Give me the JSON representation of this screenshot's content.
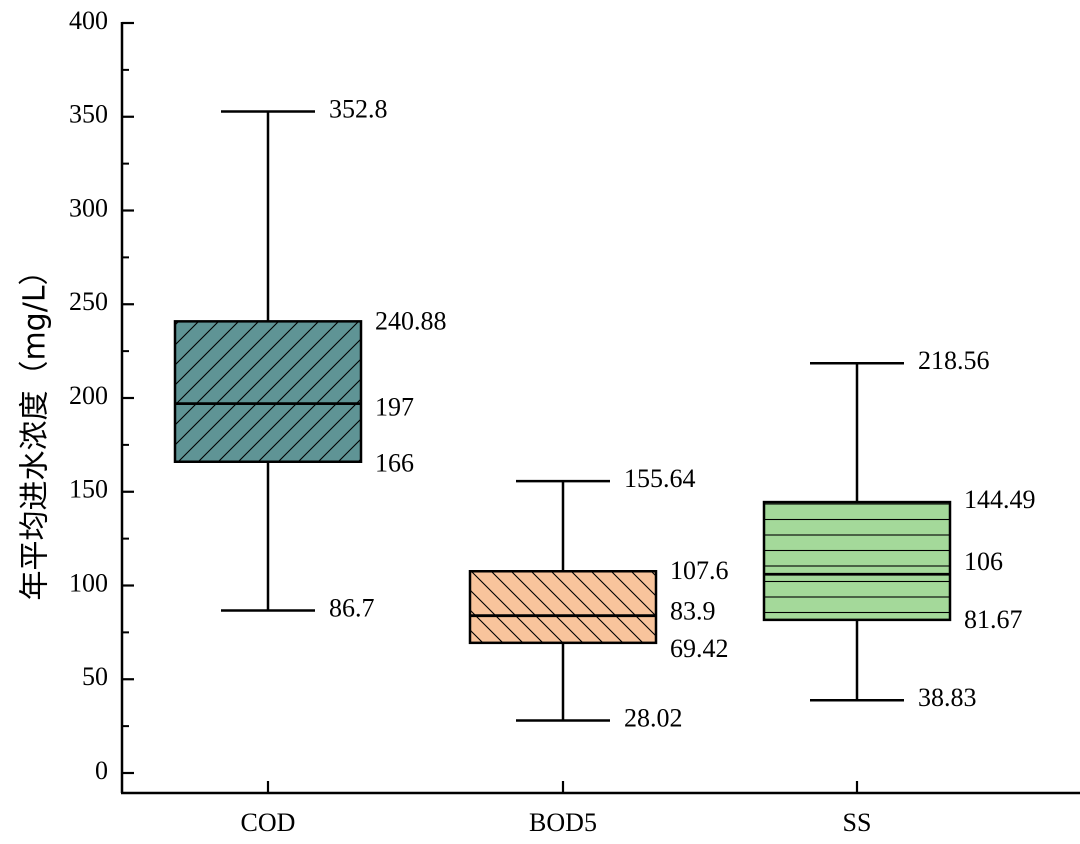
{
  "chart_data": {
    "type": "box",
    "title": "",
    "xlabel": "",
    "ylabel": "年平均进水浓度（mg/L）",
    "ylim": [
      0,
      400
    ],
    "yticks": [
      0,
      50,
      100,
      150,
      200,
      250,
      300,
      350,
      400
    ],
    "grid": false,
    "series": [
      {
        "name": "COD",
        "min": 86.7,
        "q1": 166,
        "median": 197,
        "q3": 240.88,
        "max": 352.8,
        "labels": {
          "min": "86.7",
          "q1": "166",
          "median": "197",
          "q3": "240.88",
          "max": "352.8"
        },
        "fill": "#5f9495",
        "hatch": "diagonal-forward"
      },
      {
        "name": "BOD5",
        "min": 28.02,
        "q1": 69.42,
        "median": 83.9,
        "q3": 107.6,
        "max": 155.64,
        "labels": {
          "min": "28.02",
          "q1": "69.42",
          "median": "83.9",
          "q3": "107.6",
          "max": "155.64"
        },
        "fill": "#f8c49c",
        "hatch": "diagonal-backward"
      },
      {
        "name": "SS",
        "min": 38.83,
        "q1": 81.67,
        "median": 106,
        "q3": 144.49,
        "max": 218.56,
        "labels": {
          "min": "38.83",
          "q1": "81.67",
          "median": "106",
          "q3": "144.49",
          "max": "218.56"
        },
        "fill": "#a4d99a",
        "hatch": "horizontal"
      }
    ]
  }
}
